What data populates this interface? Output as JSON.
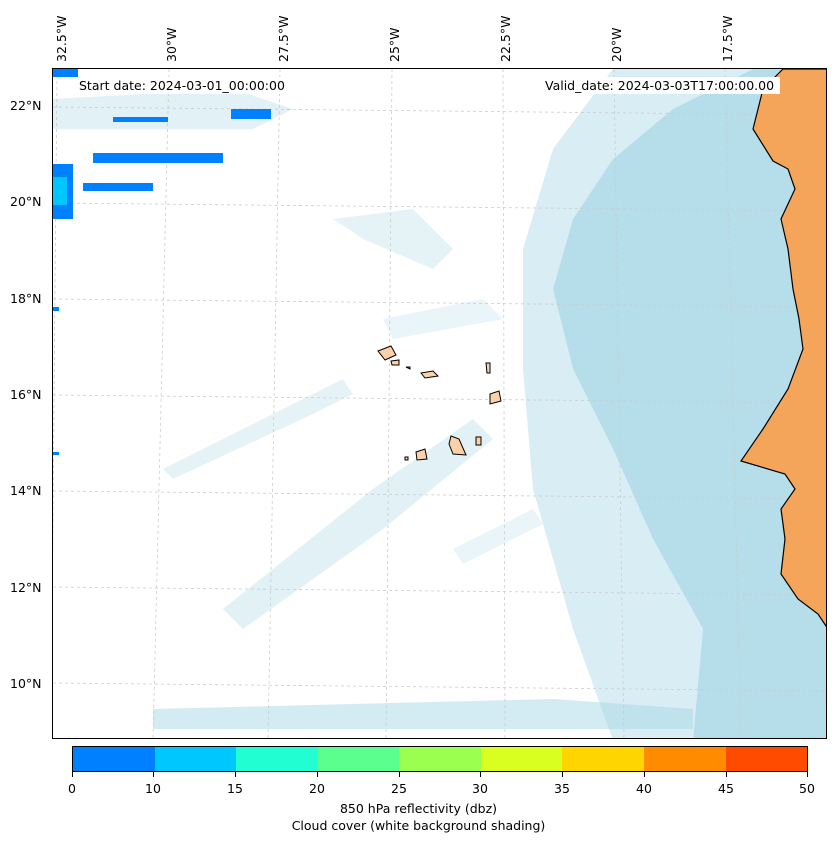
{
  "map": {
    "start_date": "Start date: 2024-03-01_00:00:00",
    "valid_date": "Valid_date: 2024-03-03T17:00:00.00",
    "lon_labels": [
      "32.5°W",
      "30°W",
      "27.5°W",
      "25°W",
      "22.5°W",
      "20°W",
      "17.5°W"
    ],
    "lat_labels": [
      "22°N",
      "20°N",
      "18°N",
      "16°N",
      "14°N",
      "12°N",
      "10°N"
    ],
    "colors": {
      "land": "#f5a55a",
      "island_fill": "#fcd0a8",
      "cloud": "#a8d8e6",
      "gridline": "#cccccc"
    }
  },
  "colorbar": {
    "ticks": [
      "0",
      "10",
      "15",
      "20",
      "25",
      "30",
      "35",
      "40",
      "45",
      "50"
    ],
    "colors": [
      "#0080ff",
      "#00c8ff",
      "#21ffd2",
      "#5bff8e",
      "#9bff50",
      "#d8ff1f",
      "#ffd500",
      "#ff8c00",
      "#ff4b00"
    ],
    "label": "850 hPa reflectivity (dbz)",
    "sublabel": "Cloud cover (white background shading)"
  }
}
